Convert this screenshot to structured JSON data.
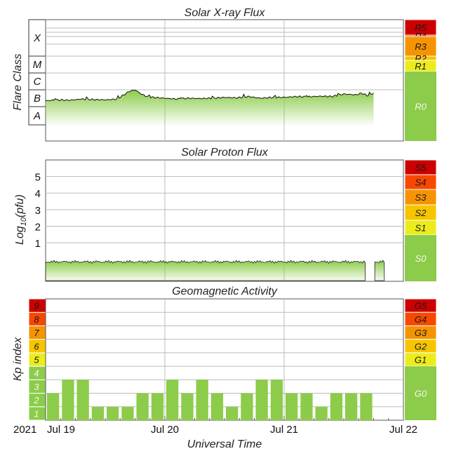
{
  "colors": {
    "quiet": "#8ccc4a",
    "minor": "#ecec1c",
    "moderate": "#f7c500",
    "strong": "#f59400",
    "severe": "#f84800",
    "extreme": "#cc0000",
    "grid": "#bbbbbb"
  },
  "chart_data": [
    {
      "type": "area",
      "title": "Solar X-ray Flux",
      "ylabel": "Flare Class",
      "y_scale": "log",
      "y_categories": [
        "A",
        "B",
        "C",
        "M",
        "X"
      ],
      "x_ticks": [
        "Jul 19",
        "Jul 20",
        "Jul 21",
        "Jul 22"
      ],
      "x_range_days": [
        0,
        3
      ],
      "series": [
        {
          "x_days": [
            0.0,
            0.1,
            0.2,
            0.3,
            0.4,
            0.5,
            0.6,
            0.7,
            0.75,
            0.8,
            0.85,
            0.9,
            1.0,
            1.1,
            1.2,
            1.3,
            1.4,
            1.5,
            1.6,
            1.7,
            1.8,
            1.9,
            2.0,
            2.1,
            2.2,
            2.3,
            2.4,
            2.5,
            2.6,
            2.65,
            2.7,
            2.75
          ],
          "y_class": [
            1.35,
            1.4,
            1.38,
            1.45,
            1.42,
            1.4,
            1.45,
            1.9,
            2.0,
            1.75,
            1.6,
            1.55,
            1.5,
            1.45,
            1.5,
            1.48,
            1.5,
            1.55,
            1.52,
            1.6,
            1.5,
            1.55,
            1.55,
            1.6,
            1.58,
            1.62,
            1.6,
            1.75,
            1.7,
            1.8,
            1.65,
            1.8
          ]
        }
      ],
      "scale_labels": [
        "R5",
        "R4",
        "R3",
        "R2",
        "R1",
        "R0"
      ]
    },
    {
      "type": "area",
      "title": "Solar Proton Flux",
      "ylabel": "Log10(pfu)",
      "ylabel_parts": [
        "Log",
        "10",
        "(pfu)"
      ],
      "y_ticks": [
        1,
        2,
        3,
        4,
        5
      ],
      "y_range": [
        -1.2,
        6
      ],
      "x_ticks": [
        "Jul 19",
        "Jul 20",
        "Jul 21",
        "Jul 22"
      ],
      "x_range_days": [
        0,
        3
      ],
      "series": [
        {
          "x_days": [
            0.0,
            2.68
          ],
          "y": [
            -0.15,
            -0.15
          ],
          "gaps_days": [
            [
              2.68,
              2.76
            ],
            [
              2.84,
              3.0
            ]
          ]
        }
      ],
      "scale_labels": [
        "S5",
        "S4",
        "S3",
        "S2",
        "S1",
        "S0"
      ]
    },
    {
      "type": "bar",
      "title": "Geomagnetic Activity",
      "ylabel": "Kp index",
      "xlabel": "Universal Time",
      "year_label": "2021",
      "y_ticks": [
        1,
        2,
        3,
        4,
        5,
        6,
        7,
        8,
        9
      ],
      "y_range": [
        0,
        9
      ],
      "x_ticks": [
        "Jul 19",
        "Jul 20",
        "Jul 21",
        "Jul 22"
      ],
      "values": [
        2.0,
        3.0,
        3.0,
        1.0,
        1.0,
        1.0,
        2.0,
        2.0,
        3.0,
        2.0,
        3.0,
        2.0,
        1.0,
        2.0,
        3.0,
        3.0,
        2.0,
        2.0,
        1.0,
        2.0,
        2.0,
        2.0
      ],
      "scale_labels": [
        "G5",
        "G4",
        "G3",
        "G2",
        "G1",
        "G0"
      ]
    }
  ]
}
